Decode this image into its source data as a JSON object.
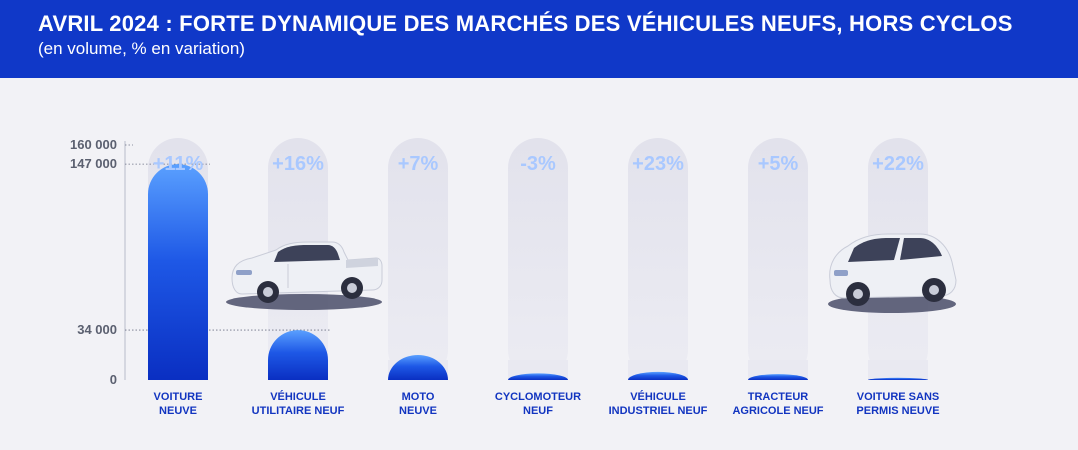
{
  "header": {
    "title": "AVRIL 2024 : FORTE DYNAMIQUE DES MARCHÉS DES VÉHICULES NEUFS, HORS CYCLOS",
    "subtitle": "(en volume, % en variation)"
  },
  "colors": {
    "header_bg": "#1038c8",
    "bar_top": "#5aa0ff",
    "bar_bottom": "#0a2fc2",
    "capsule": "#e6e6ef",
    "percent_text": "#a9c8ff",
    "category_text": "#1235c0",
    "axis_text": "#5b6070"
  },
  "chart_data": {
    "type": "bar",
    "title": "AVRIL 2024 : FORTE DYNAMIQUE DES MARCHÉS DES VÉHICULES NEUFS, HORS CYCLOS",
    "subtitle": "(en volume, % en variation)",
    "categories": [
      [
        "VOITURE",
        "NEUVE"
      ],
      [
        "VÉHICULE",
        "UTILITAIRE NEUF"
      ],
      [
        "MOTO",
        "NEUVE"
      ],
      [
        "CYCLOMOTEUR",
        "NEUF"
      ],
      [
        "VÉHICULE",
        "INDUSTRIEL NEUF"
      ],
      [
        "TRACTEUR",
        "AGRICOLE NEUF"
      ],
      [
        "VOITURE SANS",
        "PERMIS NEUVE"
      ]
    ],
    "values": [
      147000,
      34000,
      17000,
      4500,
      5500,
      4000,
      1500
    ],
    "variations": [
      "+11%",
      "+16%",
      "+7%",
      "-3%",
      "+23%",
      "+5%",
      "+22%"
    ],
    "yticks": [
      {
        "value": 160000,
        "label": "160 000"
      },
      {
        "value": 147000,
        "label": "147 000"
      },
      {
        "value": 34000,
        "label": "34 000"
      },
      {
        "value": 0,
        "label": "0"
      }
    ],
    "ylim": [
      0,
      160000
    ],
    "xlabel": "",
    "ylabel": "",
    "grid": false,
    "legend": "none"
  }
}
